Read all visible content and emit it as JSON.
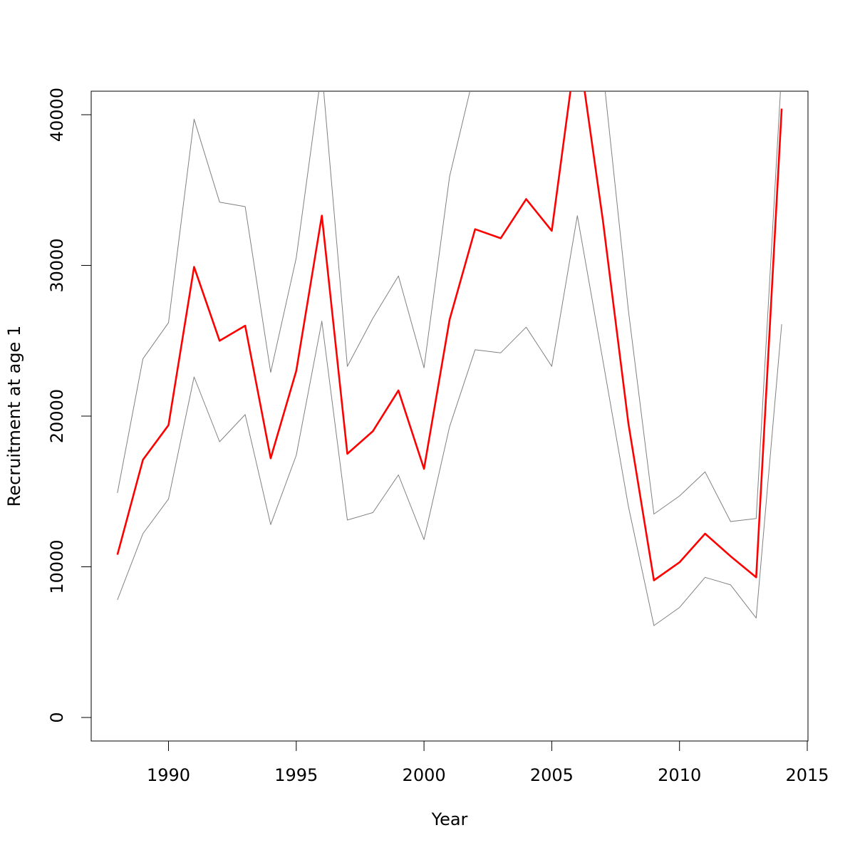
{
  "chart_data": {
    "type": "line",
    "title": "",
    "xlabel": "Year",
    "ylabel": "Recruitment at age 1",
    "xlim": [
      1988,
      2014
    ],
    "ylim": [
      0,
      40000
    ],
    "xticks": [
      1990,
      1995,
      2000,
      2005,
      2010,
      2015
    ],
    "yticks": [
      0,
      10000,
      20000,
      30000,
      40000
    ],
    "grid": false,
    "legend": "none",
    "x": [
      1988,
      1989,
      1990,
      1991,
      1992,
      1993,
      1994,
      1995,
      1996,
      1997,
      1998,
      1999,
      2000,
      2001,
      2002,
      2003,
      2004,
      2005,
      2006,
      2007,
      2008,
      2009,
      2010,
      2011,
      2012,
      2013,
      2014
    ],
    "series": [
      {
        "role": "estimate",
        "color": "#ff0000",
        "values": [
          10800,
          17100,
          19400,
          29900,
          25000,
          26000,
          17200,
          23000,
          33300,
          17500,
          19000,
          21700,
          16500,
          26400,
          32400,
          31800,
          34400,
          32300,
          45000,
          33000,
          19500,
          9100,
          10300,
          12200,
          10700,
          9300,
          40400
        ]
      },
      {
        "role": "upper",
        "color": "#808080",
        "values": [
          14900,
          23800,
          26200,
          39700,
          34200,
          33900,
          22900,
          30500,
          43000,
          23300,
          26500,
          29300,
          23200,
          35900,
          43000,
          43000,
          43000,
          43000,
          43000,
          43000,
          27000,
          13500,
          14700,
          16300,
          13000,
          13200,
          43000
        ]
      },
      {
        "role": "lower",
        "color": "#808080",
        "values": [
          7800,
          12200,
          14500,
          22600,
          18300,
          20100,
          12800,
          17400,
          26300,
          13100,
          13600,
          16100,
          11800,
          19300,
          24400,
          24200,
          25900,
          23300,
          33300,
          23700,
          14000,
          6100,
          7300,
          9300,
          8800,
          6600,
          26100
        ]
      }
    ]
  }
}
